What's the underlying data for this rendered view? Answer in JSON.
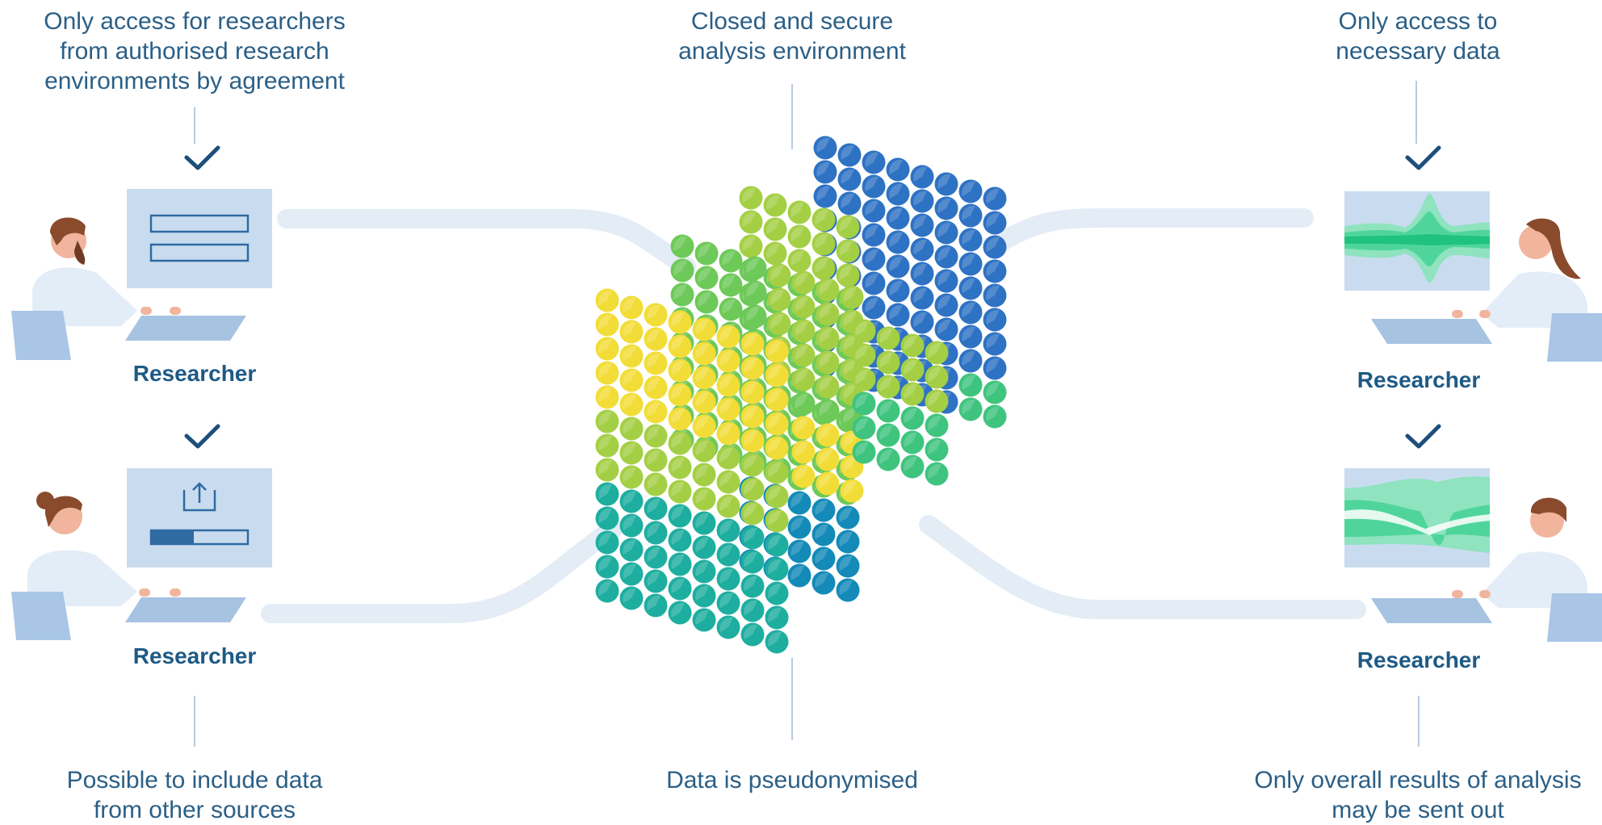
{
  "captions": {
    "top_left": "Only access for researchers\nfrom authorised research\nenvironments by agreement",
    "top_center": "Closed and secure\nanalysis environment",
    "top_right": "Only access to\nnecessary data",
    "bottom_left": "Possible to include data\nfrom other sources",
    "bottom_center": "Data is pseudonymised",
    "bottom_right": "Only overall results of analysis\nmay be sent out"
  },
  "researchers": {
    "top_left": "Researcher",
    "bottom_left": "Researcher",
    "top_right": "Researcher",
    "bottom_right": "Researcher"
  },
  "colors": {
    "text": "#2b5f86",
    "panel": "#c9dcef",
    "panel_line": "#2f6aa3",
    "connector": "#e4edf6",
    "check": "#1d4f7a",
    "skin": "#f0b59c",
    "coat": "#e3edf7",
    "ball_yellow": "#f2dd38",
    "ball_lime": "#a4cf45",
    "ball_green": "#6dc958",
    "ball_emerald": "#3fc47e",
    "ball_teal": "#1eae9f",
    "ball_cyan": "#138ab8",
    "ball_blue": "#2e72c4"
  },
  "icons": [
    "check-icon",
    "form-icon",
    "upload-icon",
    "progress-bar-icon",
    "stream-chart-icon"
  ]
}
